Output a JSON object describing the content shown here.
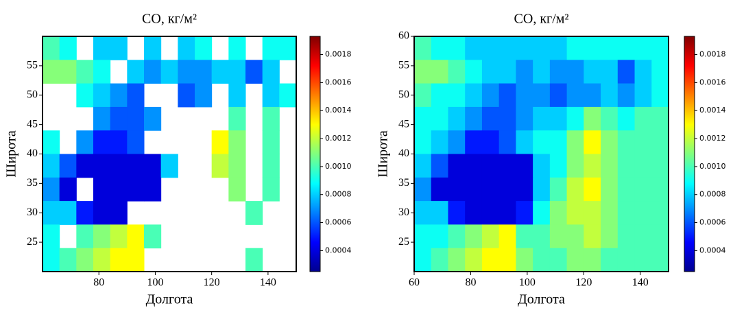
{
  "chart_data": [
    {
      "type": "heatmap",
      "title": "CO, кг/м²",
      "xlabel": "Долгота",
      "ylabel": "Широта",
      "colormap": "jet",
      "xlim": [
        60,
        150
      ],
      "ylim": [
        20,
        60
      ],
      "xticks": [
        80,
        100,
        120,
        140
      ],
      "yticks": [
        25,
        30,
        35,
        40,
        45,
        50,
        55
      ],
      "x": [
        63,
        69,
        75,
        81,
        87,
        93,
        99,
        105,
        111,
        117,
        123,
        129,
        135,
        141,
        147
      ],
      "y": [
        58,
        54,
        50,
        46,
        42,
        38,
        34,
        30,
        26,
        22
      ],
      "z": [
        [
          0.001,
          0.0009,
          null,
          0.0008,
          0.0008,
          null,
          0.0008,
          null,
          0.0008,
          0.0009,
          null,
          0.0009,
          null,
          0.0009,
          0.0009
        ],
        [
          0.0011,
          0.0011,
          0.001,
          0.0009,
          null,
          0.0008,
          0.0007,
          0.0008,
          0.0007,
          0.0007,
          0.0008,
          0.0008,
          0.0006,
          0.0008,
          null
        ],
        [
          null,
          null,
          0.0009,
          0.0008,
          0.0007,
          0.0006,
          null,
          null,
          0.0006,
          0.0007,
          null,
          0.0008,
          null,
          0.0008,
          0.0009
        ],
        [
          null,
          null,
          null,
          0.0007,
          0.0006,
          0.0006,
          0.0007,
          null,
          null,
          null,
          null,
          0.001,
          null,
          0.001,
          null
        ],
        [
          0.0009,
          null,
          0.0007,
          0.0005,
          0.0005,
          0.0006,
          null,
          null,
          null,
          null,
          0.0013,
          0.0011,
          null,
          0.001,
          null
        ],
        [
          0.0008,
          0.0006,
          0.0004,
          0.0004,
          0.0004,
          0.0004,
          0.0004,
          0.0008,
          null,
          null,
          0.0012,
          0.0011,
          null,
          0.001,
          null
        ],
        [
          0.0007,
          0.0004,
          null,
          0.0004,
          0.0004,
          0.0004,
          0.0004,
          null,
          null,
          null,
          null,
          0.0011,
          null,
          0.001,
          null
        ],
        [
          0.0008,
          0.0008,
          0.0005,
          0.0004,
          0.0004,
          null,
          null,
          null,
          null,
          null,
          null,
          null,
          0.001,
          null,
          null
        ],
        [
          0.0009,
          null,
          0.001,
          0.0011,
          0.0012,
          0.0013,
          0.001,
          null,
          null,
          null,
          null,
          null,
          null,
          null,
          null
        ],
        [
          0.0009,
          0.001,
          0.0011,
          0.0012,
          0.0013,
          0.0013,
          null,
          null,
          null,
          null,
          null,
          null,
          0.001,
          null,
          null
        ]
      ],
      "colorbar": {
        "lim": [
          0.00025,
          0.00193
        ],
        "ticks": [
          0.0004,
          0.0006,
          0.0008,
          {
            "value": 0.001,
            "label": "0.0010"
          },
          0.0012,
          0.0014,
          0.0016,
          0.0018
        ]
      }
    },
    {
      "type": "heatmap",
      "title": "CO, кг/м²",
      "xlabel": "Долгота",
      "ylabel": "Широта",
      "colormap": "jet",
      "xlim": [
        60,
        150
      ],
      "ylim": [
        20,
        60
      ],
      "xticks": [
        60,
        80,
        100,
        120,
        140
      ],
      "yticks": [
        25,
        30,
        35,
        40,
        45,
        50,
        55,
        60
      ],
      "x": [
        63,
        69,
        75,
        81,
        87,
        93,
        99,
        105,
        111,
        117,
        123,
        129,
        135,
        141,
        147
      ],
      "y": [
        58,
        54,
        50,
        46,
        42,
        38,
        34,
        30,
        26,
        22
      ],
      "z": [
        [
          0.001,
          0.0009,
          0.0009,
          0.0008,
          0.0008,
          0.0008,
          0.0008,
          0.0008,
          0.0008,
          0.0009,
          0.0009,
          0.0009,
          0.0009,
          0.0009,
          0.0009
        ],
        [
          0.0011,
          0.0011,
          0.001,
          0.0009,
          0.0008,
          0.0008,
          0.0007,
          0.0008,
          0.0007,
          0.0007,
          0.0008,
          0.0008,
          0.0006,
          0.0008,
          0.0009
        ],
        [
          0.001,
          0.0009,
          0.0009,
          0.0008,
          0.0007,
          0.0006,
          0.0007,
          0.0007,
          0.0006,
          0.0007,
          0.0007,
          0.0008,
          0.0007,
          0.0008,
          0.0009
        ],
        [
          0.0009,
          0.0009,
          0.0008,
          0.0007,
          0.0006,
          0.0006,
          0.0007,
          0.0008,
          0.0008,
          0.0009,
          0.0011,
          0.001,
          0.0009,
          0.001,
          0.001
        ],
        [
          0.0009,
          0.0008,
          0.0007,
          0.0005,
          0.0005,
          0.0006,
          0.0008,
          0.0009,
          0.0009,
          0.0011,
          0.0013,
          0.0011,
          0.001,
          0.001,
          0.001
        ],
        [
          0.0008,
          0.0006,
          0.0004,
          0.0004,
          0.0004,
          0.0004,
          0.0004,
          0.0008,
          0.0009,
          0.0011,
          0.0012,
          0.0011,
          0.001,
          0.001,
          0.001
        ],
        [
          0.0007,
          0.0004,
          0.0004,
          0.0004,
          0.0004,
          0.0004,
          0.0004,
          0.0008,
          0.001,
          0.0012,
          0.0013,
          0.0011,
          0.001,
          0.001,
          0.001
        ],
        [
          0.0008,
          0.0008,
          0.0005,
          0.0004,
          0.0004,
          0.0004,
          0.0005,
          0.0009,
          0.0011,
          0.0012,
          0.0012,
          0.0011,
          0.001,
          0.001,
          0.001
        ],
        [
          0.0009,
          0.0009,
          0.001,
          0.0011,
          0.0012,
          0.0013,
          0.001,
          0.001,
          0.0011,
          0.0011,
          0.0012,
          0.0011,
          0.001,
          0.001,
          0.001
        ],
        [
          0.0009,
          0.001,
          0.0011,
          0.0012,
          0.0013,
          0.0013,
          0.0011,
          0.001,
          0.001,
          0.0011,
          0.0011,
          0.001,
          0.001,
          0.001,
          0.001
        ]
      ],
      "colorbar": {
        "lim": [
          0.00025,
          0.00193
        ],
        "ticks": [
          0.0004,
          0.0006,
          0.0008,
          {
            "value": 0.001,
            "label": "0.0010"
          },
          0.0012,
          0.0014,
          0.0016,
          0.0018
        ]
      }
    }
  ]
}
